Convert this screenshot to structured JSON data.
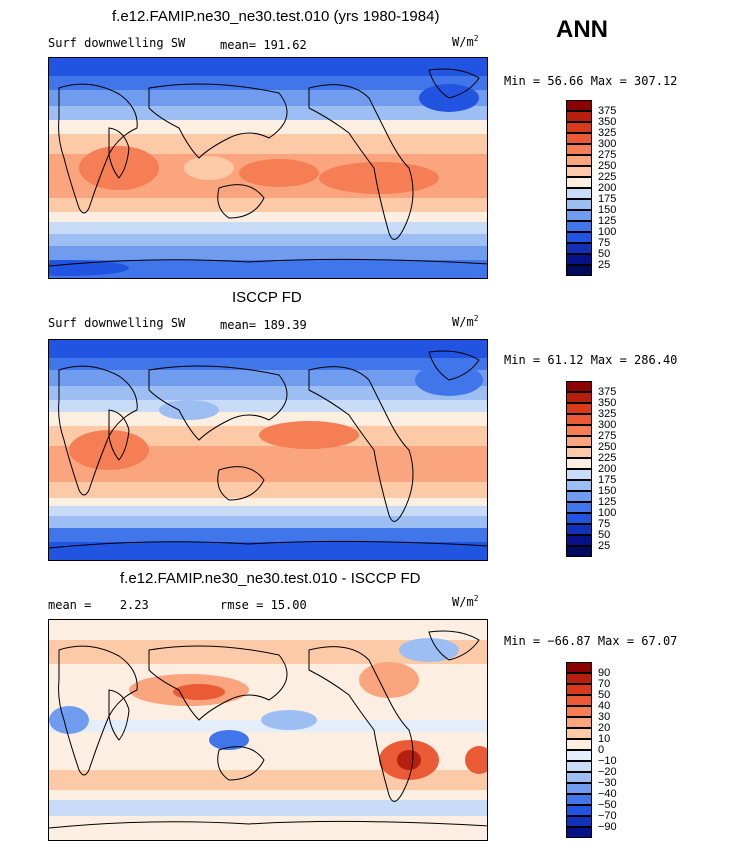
{
  "season": "ANN",
  "units_label": "W/m",
  "units_exp": "2",
  "panels": [
    {
      "title": "f.e12.FAMIP.ne30_ne30.test.010 (yrs 1980-1984)",
      "left_label": "Surf downwelling SW",
      "stat_label": "mean=",
      "stat_value": "191.62",
      "minmax": "Min =  56.66 Max = 307.12"
    },
    {
      "title": "ISCCP FD",
      "left_label": "Surf downwelling SW",
      "stat_label": "mean=",
      "stat_value": "189.39",
      "minmax": "Min =  61.12 Max = 286.40"
    },
    {
      "title": "f.e12.FAMIP.ne30_ne30.test.010 - ISCCP FD",
      "left_label": "mean =",
      "left_value": "2.23",
      "stat_label": "rmse =",
      "stat_value": "15.00",
      "minmax": "Min = −66.87 Max =  67.07"
    }
  ],
  "chart_data": [
    {
      "type": "heatmap",
      "title": "f.e12.FAMIP.ne30_ne30.test.010 (yrs 1980-1984)",
      "variable": "Surf downwelling SW",
      "units": "W/m2",
      "mean": 191.62,
      "min": 56.66,
      "max": 307.12,
      "contour_levels": [
        25,
        50,
        75,
        100,
        125,
        150,
        175,
        200,
        225,
        250,
        275,
        300,
        325,
        350,
        375
      ]
    },
    {
      "type": "heatmap",
      "title": "ISCCP FD",
      "variable": "Surf downwelling SW",
      "units": "W/m2",
      "mean": 189.39,
      "min": 61.12,
      "max": 286.4,
      "contour_levels": [
        25,
        50,
        75,
        100,
        125,
        150,
        175,
        200,
        225,
        250,
        275,
        300,
        325,
        350,
        375
      ]
    },
    {
      "type": "heatmap",
      "title": "f.e12.FAMIP.ne30_ne30.test.010 - ISCCP FD",
      "units": "W/m2",
      "mean": 2.23,
      "rmse": 15.0,
      "min": -66.87,
      "max": 67.07,
      "contour_levels": [
        -90,
        -70,
        -50,
        -40,
        -30,
        -20,
        -10,
        0,
        10,
        20,
        30,
        40,
        50,
        70,
        90
      ]
    }
  ],
  "colorbars": {
    "absolute": {
      "labels": [
        "375",
        "350",
        "325",
        "300",
        "275",
        "250",
        "225",
        "200",
        "175",
        "150",
        "125",
        "100",
        "75",
        "50",
        "25"
      ],
      "colors": [
        "#8b0000",
        "#b81e0e",
        "#d83a1c",
        "#ea5a35",
        "#f57e55",
        "#fba57e",
        "#fdcaa8",
        "#fdeee2",
        "#c9dcf7",
        "#9dbef2",
        "#6f9cee",
        "#4176ea",
        "#2154e0",
        "#1230b8",
        "#06118a",
        "#020a5e"
      ]
    },
    "difference": {
      "labels": [
        "90",
        "70",
        "50",
        "40",
        "30",
        "20",
        "10",
        "0",
        "−10",
        "−20",
        "−30",
        "−40",
        "−50",
        "−70",
        "−90"
      ],
      "colors": [
        "#8b0000",
        "#b81e0e",
        "#d83a1c",
        "#ea5a35",
        "#f57e55",
        "#fba57e",
        "#fdcaa8",
        "#fdeee2",
        "#e4eefb",
        "#c9dcf7",
        "#9dbef2",
        "#6f9cee",
        "#4176ea",
        "#2154e0",
        "#1230b8",
        "#06118a"
      ]
    }
  }
}
